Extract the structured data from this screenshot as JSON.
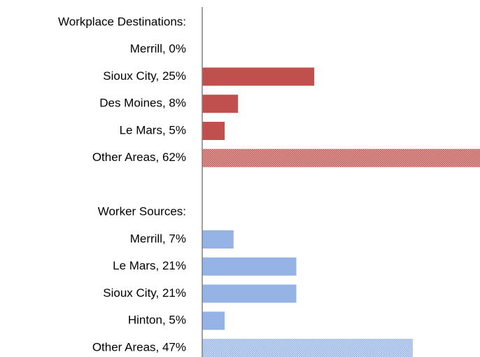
{
  "chart_data": {
    "type": "bar",
    "orientation": "horizontal",
    "groups": [
      {
        "label": "Workplace Destinations:",
        "color": "#c0504d",
        "categories": [
          "Merrill, 0%",
          "Sioux City, 25%",
          "Des Moines, 8%",
          "Le Mars, 5%",
          "Other Areas, 62%"
        ],
        "values": [
          0,
          25,
          8,
          5,
          62
        ],
        "patterned": [
          false,
          false,
          false,
          false,
          true
        ]
      },
      {
        "label": "Worker Sources:",
        "color": "#95b3e5",
        "categories": [
          "Merrill, 7%",
          "Le Mars, 21%",
          "Sioux City, 21%",
          "Hinton, 5%",
          "Other Areas, 47%"
        ],
        "values": [
          7,
          21,
          21,
          5,
          47
        ],
        "patterned": [
          false,
          false,
          false,
          false,
          true
        ]
      }
    ]
  }
}
